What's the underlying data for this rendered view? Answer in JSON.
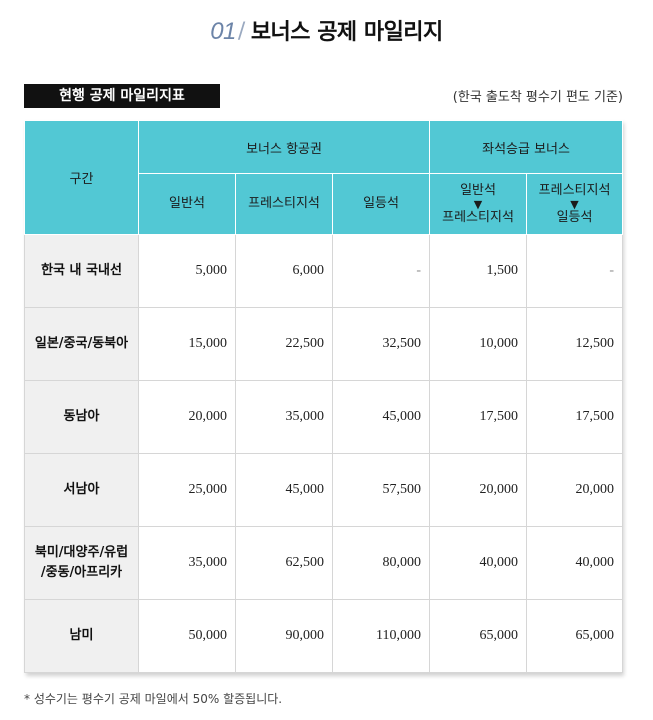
{
  "title": {
    "number": "01",
    "slash": "/",
    "text": "보너스 공제 마일리지"
  },
  "label": "현행 공제 마일리지표",
  "basis": "(한국 출도착 평수기 편도 기준)",
  "table": {
    "col_region": "구간",
    "group_bonus": "보너스 항공권",
    "group_upgrade": "좌석승급 보너스",
    "sub": {
      "economy": "일반석",
      "prestige": "프레스티지석",
      "first": "일등석",
      "upg1_from": "일반석",
      "upg1_arrow": "▼",
      "upg1_to": "프레스티지석",
      "upg2_from": "프레스티지석",
      "upg2_arrow": "▼",
      "upg2_to": "일등석"
    },
    "rows": [
      {
        "region": "한국 내 국내선",
        "region2": "",
        "v": [
          "5,000",
          "6,000",
          "-",
          "1,500",
          "-"
        ]
      },
      {
        "region": "일본/중국/동북아",
        "region2": "",
        "v": [
          "15,000",
          "22,500",
          "32,500",
          "10,000",
          "12,500"
        ]
      },
      {
        "region": "동남아",
        "region2": "",
        "v": [
          "20,000",
          "35,000",
          "45,000",
          "17,500",
          "17,500"
        ]
      },
      {
        "region": "서남아",
        "region2": "",
        "v": [
          "25,000",
          "45,000",
          "57,500",
          "20,000",
          "20,000"
        ]
      },
      {
        "region": "북미/대양주/유럽",
        "region2": "/중동/아프리카",
        "v": [
          "35,000",
          "62,500",
          "80,000",
          "40,000",
          "40,000"
        ]
      },
      {
        "region": "남미",
        "region2": "",
        "v": [
          "50,000",
          "90,000",
          "110,000",
          "65,000",
          "65,000"
        ]
      }
    ]
  },
  "footnote": "* 성수기는 평수기 공제 마일에서 50% 할증됩니다."
}
